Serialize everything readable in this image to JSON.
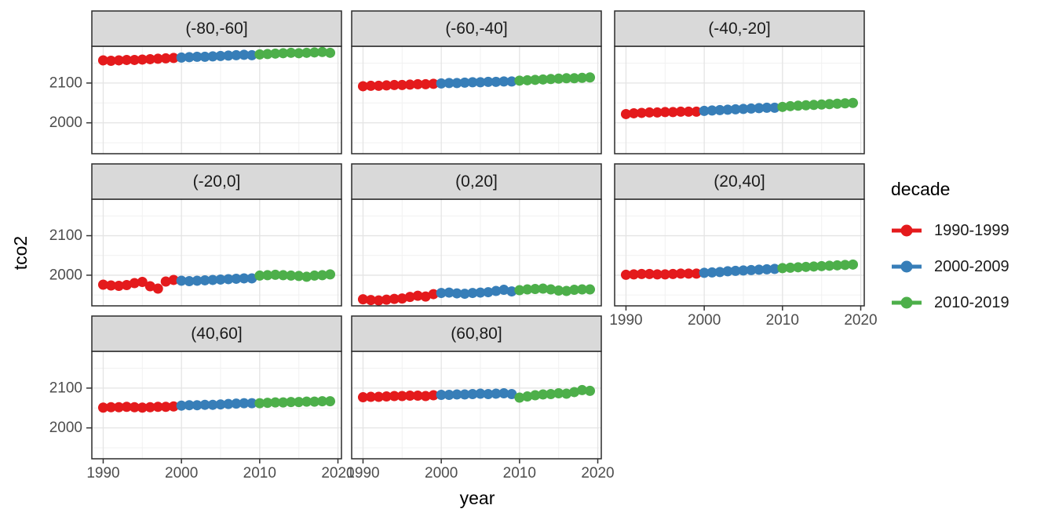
{
  "axes": {
    "x_label": "year",
    "y_label": "tco2",
    "x_ticks": [
      1990,
      2000,
      2010,
      2020
    ],
    "x_minor_ticks": [
      1995,
      2005,
      2015
    ],
    "y_ticks": [
      2000,
      2100
    ],
    "y_minor_ticks": [
      1950,
      2050,
      2150
    ],
    "xlim": [
      1988.55,
      2020.45
    ],
    "ylim": [
      1922.4,
      2192.4
    ]
  },
  "legend": {
    "title": "decade",
    "entries": [
      {
        "label": "1990-1999",
        "color": "#E41A1C"
      },
      {
        "label": "2000-2009",
        "color": "#377EB8"
      },
      {
        "label": "2010-2019",
        "color": "#4DAF4A"
      }
    ]
  },
  "style": {
    "strip_bg": "#D9D9D9",
    "strip_border": "#2b2b2b",
    "panel_bg": "#ffffff",
    "panel_border": "#2b2b2b",
    "grid_major": "#E4E4E4",
    "grid_minor": "#F1F1F1",
    "tick_color": "#333333",
    "tick_label_color": "#4d4d4d",
    "strip_text_color": "#1a1a1a"
  },
  "chart_data": {
    "type": "scatter",
    "title": "",
    "xlabel": "year",
    "ylabel": "tco2",
    "facet_variable": "latitude band",
    "color_variable": "decade",
    "decades": [
      {
        "name": "1990-1999",
        "from": 1990,
        "to": 1999,
        "color": "#E41A1C"
      },
      {
        "name": "2000-2009",
        "from": 2000,
        "to": 2009,
        "color": "#377EB8"
      },
      {
        "name": "2010-2019",
        "from": 2010,
        "to": 2019,
        "color": "#4DAF4A"
      }
    ],
    "x": [
      1990,
      1991,
      1992,
      1993,
      1994,
      1995,
      1996,
      1997,
      1998,
      1999,
      2000,
      2001,
      2002,
      2003,
      2004,
      2005,
      2006,
      2007,
      2008,
      2009,
      2010,
      2011,
      2012,
      2013,
      2014,
      2015,
      2016,
      2017,
      2018,
      2019
    ],
    "facets": [
      {
        "label": "(-80,-60]",
        "values": [
          2157,
          2156,
          2157,
          2158,
          2158,
          2159,
          2160,
          2161,
          2162,
          2163,
          2164,
          2165,
          2166,
          2166,
          2167,
          2168,
          2169,
          2170,
          2171,
          2170,
          2172,
          2173,
          2174,
          2175,
          2176,
          2175,
          2176,
          2177,
          2178,
          2176
        ]
      },
      {
        "label": "(-60,-40]",
        "values": [
          2092,
          2093,
          2093,
          2094,
          2095,
          2095,
          2096,
          2097,
          2097,
          2098,
          2099,
          2100,
          2100,
          2101,
          2102,
          2102,
          2103,
          2103,
          2104,
          2104,
          2106,
          2107,
          2108,
          2109,
          2110,
          2111,
          2112,
          2112,
          2113,
          2114
        ]
      },
      {
        "label": "(-40,-20]",
        "values": [
          2022,
          2024,
          2025,
          2026,
          2026,
          2027,
          2027,
          2028,
          2028,
          2028,
          2030,
          2031,
          2032,
          2033,
          2034,
          2035,
          2036,
          2037,
          2038,
          2038,
          2040,
          2042,
          2043,
          2044,
          2045,
          2046,
          2047,
          2048,
          2049,
          2050
        ]
      },
      {
        "label": "(-20,0]",
        "values": [
          1976,
          1974,
          1973,
          1975,
          1980,
          1983,
          1972,
          1966,
          1984,
          1988,
          1986,
          1985,
          1986,
          1987,
          1988,
          1989,
          1990,
          1991,
          1992,
          1992,
          1999,
          2000,
          2001,
          2000,
          1999,
          1998,
          1996,
          1999,
          2000,
          2002
        ]
      },
      {
        "label": "(0,20]",
        "values": [
          1939,
          1937,
          1936,
          1938,
          1940,
          1941,
          1945,
          1948,
          1946,
          1952,
          1955,
          1956,
          1954,
          1953,
          1955,
          1956,
          1957,
          1960,
          1963,
          1959,
          1962,
          1964,
          1965,
          1966,
          1964,
          1961,
          1960,
          1963,
          1964,
          1964
        ]
      },
      {
        "label": "(20,40]",
        "values": [
          2001,
          2002,
          2003,
          2003,
          2002,
          2002,
          2003,
          2004,
          2004,
          2004,
          2006,
          2007,
          2008,
          2010,
          2011,
          2012,
          2013,
          2014,
          2015,
          2016,
          2018,
          2019,
          2020,
          2021,
          2022,
          2023,
          2024,
          2025,
          2026,
          2027
        ]
      },
      {
        "label": "(40,60]",
        "values": [
          2051,
          2052,
          2052,
          2053,
          2052,
          2051,
          2052,
          2053,
          2053,
          2054,
          2056,
          2057,
          2057,
          2058,
          2058,
          2059,
          2060,
          2061,
          2062,
          2062,
          2062,
          2063,
          2064,
          2064,
          2065,
          2065,
          2066,
          2066,
          2067,
          2067
        ]
      },
      {
        "label": "(60,80]",
        "values": [
          2077,
          2078,
          2078,
          2079,
          2080,
          2080,
          2081,
          2081,
          2080,
          2082,
          2083,
          2083,
          2084,
          2084,
          2085,
          2086,
          2085,
          2086,
          2087,
          2085,
          2076,
          2079,
          2082,
          2084,
          2085,
          2087,
          2086,
          2090,
          2095,
          2093
        ]
      }
    ],
    "legend_position": "right",
    "grid": true
  }
}
